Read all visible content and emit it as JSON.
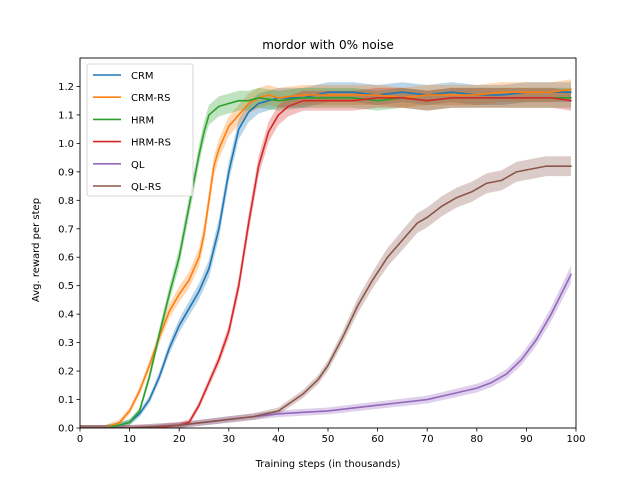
{
  "chart_data": {
    "type": "line",
    "title": "mordor with 0% noise",
    "xlabel": "Training steps (in thousands)",
    "ylabel": "Avg. reward per step",
    "xlim": [
      0,
      100
    ],
    "ylim": [
      0,
      1.3
    ],
    "xticks": [
      0,
      10,
      20,
      30,
      40,
      50,
      60,
      70,
      80,
      90,
      100
    ],
    "yticks": [
      0.0,
      0.1,
      0.2,
      0.3,
      0.4,
      0.5,
      0.6,
      0.7,
      0.8,
      0.9,
      1.0,
      1.1,
      1.2
    ],
    "ytick_labels": [
      "0.0",
      "0.1",
      "0.2",
      "0.3",
      "0.4",
      "0.5",
      "0.6",
      "0.7",
      "0.8",
      "0.9",
      "1.0",
      "1.1",
      "1.2"
    ],
    "grid": false,
    "legend_position": "top-left",
    "series": [
      {
        "name": "CRM",
        "color": "#1f77b4",
        "x": [
          0,
          5,
          8,
          10,
          12,
          14,
          16,
          18,
          20,
          22,
          24,
          26,
          28,
          30,
          32,
          34,
          36,
          38,
          40,
          45,
          50,
          55,
          60,
          65,
          70,
          75,
          80,
          85,
          90,
          95,
          99
        ],
        "y": [
          0.0,
          0.0,
          0.01,
          0.02,
          0.05,
          0.1,
          0.18,
          0.28,
          0.36,
          0.42,
          0.48,
          0.56,
          0.7,
          0.9,
          1.05,
          1.11,
          1.14,
          1.15,
          1.16,
          1.16,
          1.18,
          1.18,
          1.17,
          1.18,
          1.17,
          1.18,
          1.17,
          1.17,
          1.18,
          1.18,
          1.18
        ]
      },
      {
        "name": "CRM-RS",
        "color": "#ff7f0e",
        "x": [
          0,
          5,
          8,
          10,
          12,
          14,
          16,
          18,
          20,
          22,
          24,
          25,
          26,
          27,
          28,
          30,
          32,
          34,
          36,
          38,
          40,
          45,
          50,
          55,
          60,
          65,
          70,
          75,
          80,
          85,
          90,
          95,
          99
        ],
        "y": [
          0.0,
          0.0,
          0.02,
          0.06,
          0.13,
          0.22,
          0.32,
          0.41,
          0.47,
          0.52,
          0.6,
          0.68,
          0.8,
          0.92,
          0.98,
          1.06,
          1.1,
          1.14,
          1.16,
          1.17,
          1.16,
          1.17,
          1.17,
          1.17,
          1.17,
          1.16,
          1.17,
          1.17,
          1.17,
          1.18,
          1.18,
          1.18,
          1.19
        ]
      },
      {
        "name": "HRM",
        "color": "#2ca02c",
        "x": [
          0,
          5,
          8,
          10,
          12,
          14,
          16,
          18,
          20,
          22,
          24,
          25,
          26,
          28,
          30,
          32,
          34,
          36,
          40,
          45,
          50,
          55,
          60,
          65,
          70,
          75,
          80,
          85,
          90,
          95,
          99
        ],
        "y": [
          0.0,
          0.0,
          0.01,
          0.02,
          0.06,
          0.18,
          0.33,
          0.47,
          0.6,
          0.78,
          0.96,
          1.04,
          1.1,
          1.13,
          1.14,
          1.15,
          1.15,
          1.16,
          1.15,
          1.16,
          1.16,
          1.16,
          1.15,
          1.16,
          1.15,
          1.16,
          1.16,
          1.16,
          1.16,
          1.16,
          1.16
        ]
      },
      {
        "name": "HRM-RS",
        "color": "#d62728",
        "x": [
          0,
          10,
          15,
          20,
          22,
          24,
          26,
          28,
          30,
          32,
          34,
          35,
          36,
          38,
          40,
          42,
          45,
          50,
          55,
          60,
          65,
          70,
          75,
          80,
          85,
          90,
          95,
          99
        ],
        "y": [
          0.0,
          0.0,
          0.0,
          0.01,
          0.02,
          0.08,
          0.16,
          0.24,
          0.34,
          0.5,
          0.72,
          0.82,
          0.92,
          1.04,
          1.1,
          1.13,
          1.15,
          1.15,
          1.15,
          1.16,
          1.16,
          1.15,
          1.16,
          1.16,
          1.16,
          1.16,
          1.16,
          1.15
        ]
      },
      {
        "name": "QL",
        "color": "#9467bd",
        "x": [
          0,
          10,
          20,
          25,
          30,
          35,
          40,
          45,
          50,
          55,
          60,
          65,
          70,
          75,
          80,
          83,
          86,
          89,
          92,
          95,
          97,
          99
        ],
        "y": [
          0.0,
          0.0,
          0.01,
          0.02,
          0.03,
          0.04,
          0.05,
          0.055,
          0.06,
          0.07,
          0.08,
          0.09,
          0.1,
          0.12,
          0.14,
          0.16,
          0.19,
          0.24,
          0.31,
          0.4,
          0.47,
          0.54
        ]
      },
      {
        "name": "QL-RS",
        "color": "#8c564b",
        "x": [
          0,
          10,
          20,
          25,
          30,
          35,
          40,
          45,
          48,
          50,
          53,
          56,
          59,
          62,
          65,
          68,
          70,
          73,
          76,
          79,
          82,
          85,
          88,
          91,
          94,
          97,
          99
        ],
        "y": [
          0.0,
          0.0,
          0.01,
          0.02,
          0.03,
          0.04,
          0.06,
          0.12,
          0.17,
          0.22,
          0.32,
          0.43,
          0.52,
          0.6,
          0.66,
          0.72,
          0.74,
          0.78,
          0.81,
          0.83,
          0.86,
          0.87,
          0.9,
          0.91,
          0.92,
          0.92,
          0.92
        ]
      }
    ]
  }
}
